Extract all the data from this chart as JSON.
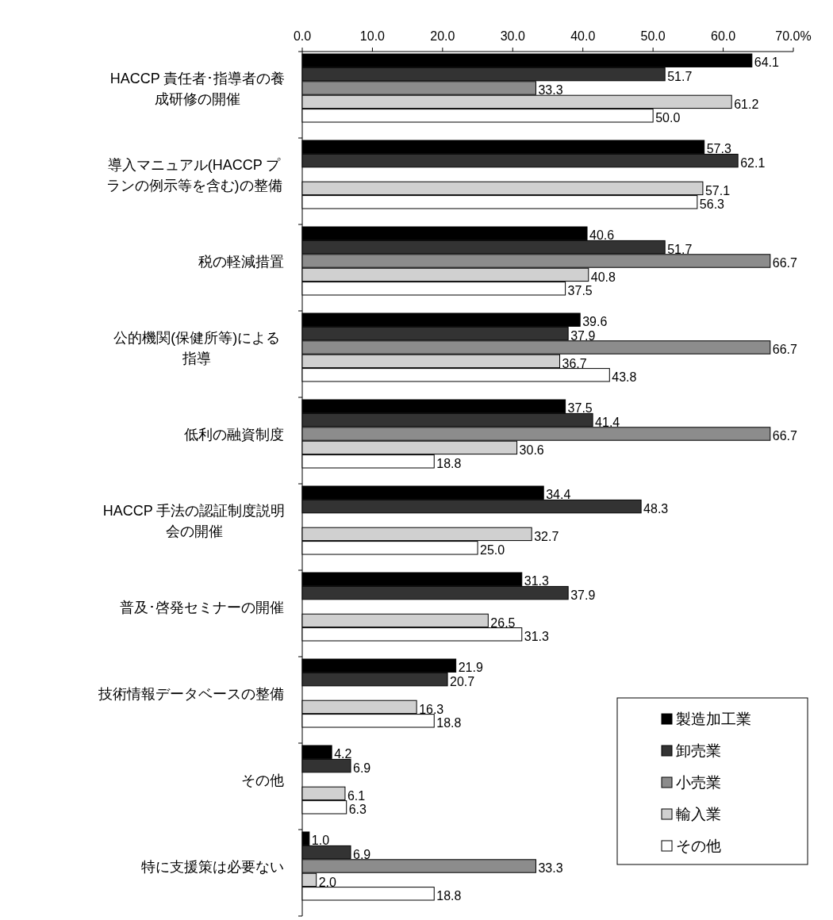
{
  "chart_data": {
    "type": "bar",
    "orientation": "horizontal",
    "categories": [
      "HACCP 責任者･指導者の養成研修の開催",
      "導入マニュアル(HACCP プランの例示等を含む)の整備",
      "税の軽減措置",
      "公的機関(保健所等)による指導",
      "低利の融資制度",
      "HACCP 手法の認証制度説明会の開催",
      "普及･啓発セミナーの開催",
      "技術情報データベースの整備",
      "その他",
      "特に支援策は必要ない"
    ],
    "series": [
      {
        "name": "製造加工業",
        "color": "#000000",
        "values": [
          64.1,
          57.3,
          40.6,
          39.6,
          37.5,
          34.4,
          31.3,
          21.9,
          4.2,
          1.0
        ],
        "value_labels": [
          "64.1",
          "57.3",
          "40.6",
          "39.6",
          "37.5",
          "34.4",
          "31.3",
          "21.9",
          "4.2",
          "1.0"
        ]
      },
      {
        "name": "卸売業",
        "color": "#333333",
        "values": [
          51.7,
          62.1,
          51.7,
          37.9,
          41.4,
          48.3,
          37.9,
          20.7,
          6.9,
          6.9
        ],
        "value_labels": [
          "51.7",
          "62.1",
          "51.7",
          "37.9",
          "41.4",
          "48.3",
          "37.9",
          "20.7",
          "6.9",
          "6.9"
        ]
      },
      {
        "name": "小売業",
        "color": "#8c8c8c",
        "values": [
          33.3,
          null,
          66.7,
          66.7,
          66.7,
          null,
          null,
          null,
          null,
          33.3
        ],
        "value_labels": [
          "33.3",
          null,
          "66.7",
          "66.7",
          "66.7",
          null,
          null,
          null,
          null,
          "33.3"
        ]
      },
      {
        "name": "輸入業",
        "color": "#d0d0d0",
        "values": [
          61.2,
          57.1,
          40.8,
          36.7,
          30.6,
          32.7,
          26.5,
          16.3,
          6.1,
          2.0
        ],
        "value_labels": [
          "61.2",
          "57.1",
          "40.8",
          "36.7",
          "30.6",
          "32.7",
          "26.5",
          "16.3",
          "6.1",
          "2.0"
        ]
      },
      {
        "name": "その他",
        "color": "#ffffff",
        "values": [
          50.0,
          56.3,
          37.5,
          43.8,
          18.8,
          25.0,
          31.3,
          18.8,
          6.3,
          18.8
        ],
        "value_labels": [
          "50.0",
          "56.3",
          "37.5",
          "43.8",
          "18.8",
          "25.0",
          "31.3",
          "18.8",
          "6.3",
          "18.8"
        ]
      }
    ],
    "xlim": [
      0,
      70
    ],
    "xticks": [
      {
        "value": 0,
        "label": "0.0"
      },
      {
        "value": 10,
        "label": "10.0"
      },
      {
        "value": 20,
        "label": "20.0"
      },
      {
        "value": 30,
        "label": "30.0"
      },
      {
        "value": 40,
        "label": "40.0"
      },
      {
        "value": 50,
        "label": "50.0"
      },
      {
        "value": 60,
        "label": "60.0"
      },
      {
        "value": 70,
        "label": "70.0%"
      }
    ],
    "legend": "bottom right"
  }
}
